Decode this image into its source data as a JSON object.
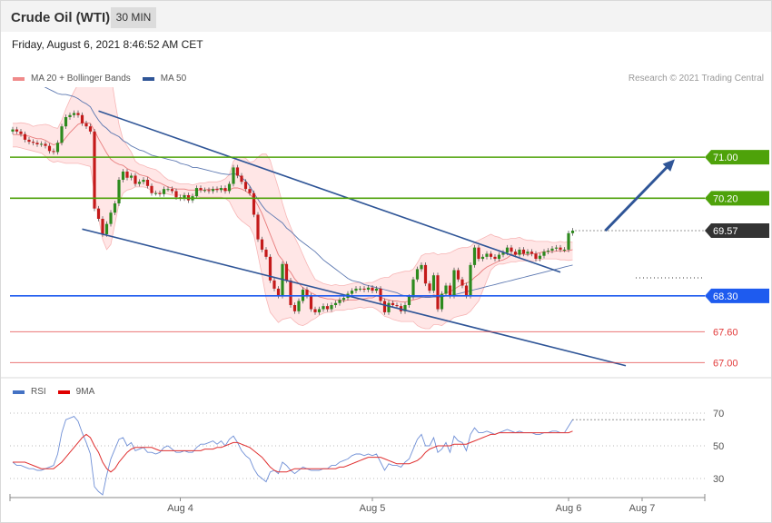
{
  "header": {
    "title": "Crude Oil (WTI)",
    "timeframe": "30 MIN"
  },
  "date_text": "Friday, August 6, 2021 8:46:52 AM CET",
  "legend": {
    "bollinger": {
      "label": "MA 20 + Bollinger Bands",
      "color": "#f08a8a"
    },
    "ma50": {
      "label": "MA 50",
      "color": "#2f5597"
    },
    "rsi": {
      "label": "RSI",
      "color": "#4472c4"
    },
    "rsi_ma": {
      "label": "9MA",
      "color": "#e00000"
    }
  },
  "copyright": "Research © 2021 Trading Central",
  "chart_data": [
    {
      "type": "candlestick",
      "title": "Crude Oil (WTI)",
      "timeframe": "30 MIN",
      "x_labels": [
        "Aug 4",
        "Aug 5",
        "Aug 6",
        "Aug 7"
      ],
      "ylim": [
        66.9,
        73.0
      ],
      "current_price": 69.57,
      "levels": [
        {
          "value": 71.0,
          "label": "71.00",
          "kind": "resistance",
          "color": "#4ea20a"
        },
        {
          "value": 70.2,
          "label": "70.20",
          "kind": "resistance",
          "color": "#4ea20a"
        },
        {
          "value": 69.57,
          "label": "69.57",
          "kind": "last",
          "color": "#333333"
        },
        {
          "value": 68.3,
          "label": "68.30",
          "kind": "pivot",
          "color": "#1e5bef"
        },
        {
          "value": 67.6,
          "label": "67.60",
          "kind": "support",
          "color": "#e23a3a"
        },
        {
          "value": 67.0,
          "label": "67.00",
          "kind": "support",
          "color": "#e23a3a"
        }
      ],
      "close": [
        71.54,
        71.5,
        71.45,
        71.34,
        71.3,
        71.28,
        71.25,
        71.26,
        71.22,
        71.12,
        71.1,
        71.28,
        71.6,
        71.78,
        71.82,
        71.86,
        71.82,
        71.66,
        71.6,
        71.5,
        70.0,
        69.8,
        69.5,
        69.7,
        69.92,
        70.1,
        70.56,
        70.72,
        70.6,
        70.64,
        70.48,
        70.52,
        70.56,
        70.44,
        70.3,
        70.3,
        70.28,
        70.38,
        70.38,
        70.34,
        70.22,
        70.2,
        70.26,
        70.16,
        70.24,
        70.4,
        70.36,
        70.36,
        70.34,
        70.38,
        70.36,
        70.4,
        70.34,
        70.48,
        70.8,
        70.64,
        70.52,
        70.38,
        70.3,
        69.88,
        69.4,
        69.2,
        69.06,
        68.6,
        68.44,
        68.3,
        68.92,
        68.6,
        68.12,
        68.0,
        68.2,
        68.42,
        68.3,
        68.04,
        67.98,
        68.04,
        68.1,
        68.04,
        68.12,
        68.16,
        68.22,
        68.26,
        68.34,
        68.4,
        68.44,
        68.44,
        68.42,
        68.46,
        68.4,
        68.44,
        68.2,
        67.98,
        68.16,
        68.12,
        68.1,
        68.0,
        68.12,
        68.28,
        68.62,
        68.82,
        68.9,
        68.54,
        68.4,
        68.7,
        68.04,
        68.34,
        68.5,
        68.3,
        68.8,
        68.62,
        68.5,
        68.3,
        68.9,
        69.24,
        69.02,
        69.06,
        69.12,
        69.06,
        69.02,
        69.1,
        69.14,
        69.24,
        69.16,
        69.1,
        69.2,
        69.12,
        69.16,
        69.12,
        69.02,
        69.08,
        69.16,
        69.18,
        69.22,
        69.24,
        69.2,
        69.2,
        69.52,
        69.57
      ],
      "ma20": [
        71.44,
        71.44,
        71.43,
        71.42,
        71.41,
        71.38,
        71.36,
        71.36,
        71.33,
        71.28,
        71.24,
        71.27,
        71.28,
        71.38,
        71.48,
        71.56,
        71.64,
        71.67,
        71.67,
        71.66,
        71.52,
        71.36,
        71.22,
        71.08,
        70.96,
        70.9,
        70.86,
        70.84,
        70.78,
        70.74,
        70.72,
        70.66,
        70.64,
        70.62,
        70.56,
        70.52,
        70.5,
        70.46,
        70.42,
        70.4,
        70.38,
        70.38,
        70.38,
        70.36,
        70.36,
        70.36,
        70.36,
        70.36,
        70.38,
        70.37,
        70.38,
        70.39,
        70.36,
        70.36,
        70.4,
        70.4,
        70.38,
        70.34,
        70.28,
        70.2,
        70.06,
        69.9,
        69.7,
        69.5,
        69.3,
        69.1,
        69.0,
        68.85,
        68.76,
        68.63,
        68.54,
        68.46,
        68.41,
        68.36,
        68.32,
        68.28,
        68.26,
        68.24,
        68.24,
        68.22,
        68.22,
        68.2,
        68.22,
        68.22,
        68.22,
        68.24,
        68.24,
        68.26,
        68.26,
        68.3,
        68.28,
        68.24,
        68.22,
        68.2,
        68.2,
        68.18,
        68.18,
        68.2,
        68.22,
        68.24,
        68.27,
        68.28,
        68.28,
        68.32,
        68.3,
        68.32,
        68.36,
        68.38,
        68.43,
        68.48,
        68.52,
        68.55,
        68.58,
        68.66,
        68.72,
        68.8,
        68.86,
        68.9,
        68.94,
        68.98,
        69.0,
        69.04,
        69.1,
        69.11,
        69.13,
        69.11,
        69.1,
        69.12,
        69.12,
        69.14,
        69.16,
        69.16,
        69.16,
        69.17,
        69.18,
        69.17,
        69.18,
        69.2
      ],
      "bb_upper": [
        71.66,
        71.66,
        71.67,
        71.66,
        71.64,
        71.6,
        71.62,
        71.63,
        71.64,
        71.62,
        71.58,
        71.56,
        71.72,
        71.94,
        72.12,
        72.28,
        72.42,
        72.5,
        72.56,
        72.52,
        72.74,
        72.96,
        73.06,
        72.98,
        72.62,
        72.1,
        71.64,
        71.34,
        71.22,
        71.1,
        70.92,
        70.86,
        70.84,
        70.8,
        70.78,
        70.76,
        70.7,
        70.62,
        70.56,
        70.54,
        70.5,
        70.48,
        70.48,
        70.48,
        70.46,
        70.48,
        70.5,
        70.5,
        70.52,
        70.52,
        70.52,
        70.54,
        70.58,
        70.66,
        70.92,
        71.0,
        71.0,
        70.98,
        70.9,
        70.92,
        71.0,
        71.06,
        71.06,
        70.94,
        70.66,
        70.4,
        70.1,
        69.84,
        69.64,
        69.44,
        69.28,
        69.1,
        68.92,
        68.76,
        68.62,
        68.58,
        68.54,
        68.52,
        68.5,
        68.52,
        68.5,
        68.5,
        68.52,
        68.54,
        68.56,
        68.56,
        68.54,
        68.56,
        68.56,
        68.6,
        68.64,
        68.66,
        68.66,
        68.72,
        68.74,
        68.76,
        68.78,
        68.78,
        68.82,
        68.94,
        69.08,
        69.12,
        69.12,
        69.14,
        69.1,
        69.12,
        69.12,
        69.14,
        69.18,
        69.22,
        69.24,
        69.24,
        69.26,
        69.34,
        69.38,
        69.42,
        69.46,
        69.5,
        69.46,
        69.44,
        69.4,
        69.4,
        69.42,
        69.42,
        69.44,
        69.4,
        69.38,
        69.38,
        69.36,
        69.36,
        69.36,
        69.36,
        69.34,
        69.34,
        69.36,
        69.34,
        69.36,
        69.34
      ],
      "bb_lower": [
        71.2,
        71.2,
        71.18,
        71.16,
        71.14,
        71.12,
        71.1,
        71.08,
        71.02,
        70.94,
        70.9,
        70.92,
        70.9,
        70.88,
        70.88,
        70.88,
        70.88,
        70.86,
        70.84,
        70.82,
        70.3,
        69.82,
        69.4,
        69.2,
        69.3,
        69.7,
        70.1,
        70.3,
        70.36,
        70.38,
        70.42,
        70.42,
        70.42,
        70.4,
        70.34,
        70.3,
        70.3,
        70.3,
        70.28,
        70.26,
        70.26,
        70.26,
        70.26,
        70.24,
        70.26,
        70.24,
        70.22,
        70.22,
        70.22,
        70.22,
        70.22,
        70.22,
        70.2,
        70.14,
        69.98,
        69.84,
        69.76,
        69.7,
        69.64,
        69.48,
        69.1,
        68.7,
        68.26,
        67.98,
        67.88,
        67.78,
        67.84,
        67.86,
        67.88,
        67.8,
        67.74,
        67.72,
        67.76,
        67.82,
        67.86,
        67.92,
        67.96,
        67.98,
        67.98,
        68.02,
        68.02,
        68.02,
        68.04,
        68.04,
        68.06,
        68.08,
        68.06,
        68.08,
        68.08,
        68.04,
        67.98,
        67.9,
        67.88,
        67.84,
        67.82,
        67.8,
        67.8,
        67.8,
        67.8,
        67.72,
        67.68,
        67.66,
        67.66,
        67.74,
        67.74,
        67.72,
        67.78,
        67.82,
        67.88,
        67.9,
        67.92,
        67.94,
        68.0,
        68.1,
        68.2,
        68.4,
        68.6,
        68.8,
        68.88,
        68.92,
        68.92,
        68.94,
        68.96,
        68.96,
        68.98,
        68.98,
        68.98,
        68.98,
        68.98,
        69.0,
        69.02,
        69.02,
        69.02,
        69.02,
        69.0,
        69.0,
        68.99,
        69.0
      ],
      "ma50": [
        72.74,
        72.68,
        72.62,
        72.56,
        72.52,
        72.48,
        72.44,
        72.4,
        72.36,
        72.32,
        72.28,
        72.24,
        72.22,
        72.22,
        72.2,
        72.18,
        72.14,
        72.08,
        72.04,
        71.98,
        71.84,
        71.72,
        71.62,
        71.56,
        71.48,
        71.44,
        71.4,
        71.32,
        71.28,
        71.22,
        71.18,
        71.14,
        71.12,
        71.08,
        71.04,
        71.02,
        71.0,
        70.98,
        70.96,
        70.94,
        70.92,
        70.88,
        70.86,
        70.84,
        70.8,
        70.8,
        70.78,
        70.76,
        70.74,
        70.72,
        70.7,
        70.68,
        70.67,
        70.66,
        70.68,
        70.66,
        70.6,
        70.54,
        70.44,
        70.3,
        70.18,
        70.06,
        69.96,
        69.9,
        69.84,
        69.78,
        69.72,
        69.62,
        69.56,
        69.48,
        69.4,
        69.34,
        69.28,
        69.22,
        69.16,
        69.08,
        69.0,
        68.94,
        68.88,
        68.82,
        68.76,
        68.7,
        68.64,
        68.6,
        68.58,
        68.56,
        68.52,
        68.5,
        68.48,
        68.46,
        68.44,
        68.42,
        68.4,
        68.38,
        68.36,
        68.32,
        68.3,
        68.28,
        68.28,
        68.28,
        68.28,
        68.27,
        68.27,
        68.28,
        68.28,
        68.28,
        68.3,
        68.31,
        68.32,
        68.34,
        68.36,
        68.38,
        68.4,
        68.42,
        68.44,
        68.46,
        68.48,
        68.5,
        68.52,
        68.54,
        68.56,
        68.58,
        68.6,
        68.62,
        68.64,
        68.66,
        68.68,
        68.7,
        68.72,
        68.74,
        68.76,
        68.78,
        68.8,
        68.82,
        68.84,
        68.86,
        68.88,
        68.9
      ],
      "trendlines": [
        {
          "name": "channel-upper",
          "from": {
            "bar": 21,
            "value": 71.9
          },
          "to": {
            "bar": 134,
            "value": 68.76
          }
        },
        {
          "name": "channel-lower",
          "from": {
            "bar": 17,
            "value": 69.6
          },
          "to": {
            "bar": 150,
            "value": 66.94
          }
        },
        {
          "name": "projection-arrow",
          "from": {
            "bar": 145,
            "value": 69.57
          },
          "to": {
            "bar": 162,
            "value": 70.96
          }
        }
      ]
    },
    {
      "type": "line",
      "title": "RSI",
      "series_names": [
        "RSI",
        "9MA"
      ],
      "ylim": [
        20,
        80
      ],
      "y_ticks": [
        30,
        50,
        70
      ],
      "last_value": 66,
      "rsi": [
        40,
        38,
        38,
        37,
        36,
        36,
        35,
        35,
        36,
        37,
        38,
        45,
        58,
        66,
        67,
        68,
        65,
        58,
        52,
        45,
        25,
        22,
        20,
        32,
        42,
        48,
        54,
        55,
        50,
        52,
        47,
        48,
        49,
        46,
        46,
        45,
        46,
        49,
        50,
        48,
        46,
        46,
        47,
        46,
        46,
        49,
        51,
        51,
        52,
        53,
        51,
        53,
        50,
        54,
        56,
        52,
        47,
        44,
        42,
        36,
        32,
        30,
        28,
        34,
        35,
        33,
        40,
        38,
        35,
        33,
        35,
        37,
        36,
        35,
        35,
        35,
        36,
        36,
        38,
        38,
        40,
        41,
        42,
        44,
        45,
        45,
        44,
        45,
        44,
        45,
        40,
        35,
        39,
        38,
        38,
        37,
        40,
        42,
        48,
        54,
        57,
        50,
        50,
        55,
        46,
        48,
        52,
        46,
        56,
        53,
        52,
        47,
        57,
        61,
        58,
        58,
        59,
        58,
        57,
        58,
        59,
        60,
        59,
        58,
        59,
        58,
        58,
        58,
        57,
        57,
        58,
        58,
        59,
        59,
        58,
        58,
        62,
        66
      ],
      "rsi_ma": [
        40,
        40,
        40,
        40,
        39,
        38,
        37,
        36,
        36,
        36,
        36,
        38,
        40,
        43,
        46,
        49,
        52,
        55,
        57,
        55,
        50,
        46,
        40,
        36,
        34,
        36,
        40,
        43,
        46,
        48,
        49,
        49,
        49,
        49,
        49,
        48,
        47,
        47,
        47,
        47,
        47,
        47,
        47,
        47,
        47,
        47,
        47,
        48,
        48,
        48,
        49,
        49,
        50,
        51,
        52,
        52,
        51,
        50,
        49,
        47,
        45,
        43,
        40,
        37,
        35,
        34,
        34,
        34,
        35,
        36,
        36,
        36,
        36,
        36,
        36,
        36,
        36,
        36,
        36,
        36,
        37,
        37,
        38,
        39,
        40,
        41,
        42,
        43,
        43,
        43,
        43,
        42,
        41,
        40,
        39,
        39,
        39,
        39,
        40,
        41,
        43,
        46,
        48,
        49,
        50,
        50,
        50,
        50,
        51,
        51,
        51,
        51,
        52,
        53,
        54,
        55,
        56,
        57,
        57,
        58,
        58,
        58,
        58,
        58,
        58,
        58,
        58,
        58,
        58,
        58,
        58,
        58,
        58,
        58,
        58,
        58,
        58,
        59
      ]
    }
  ]
}
